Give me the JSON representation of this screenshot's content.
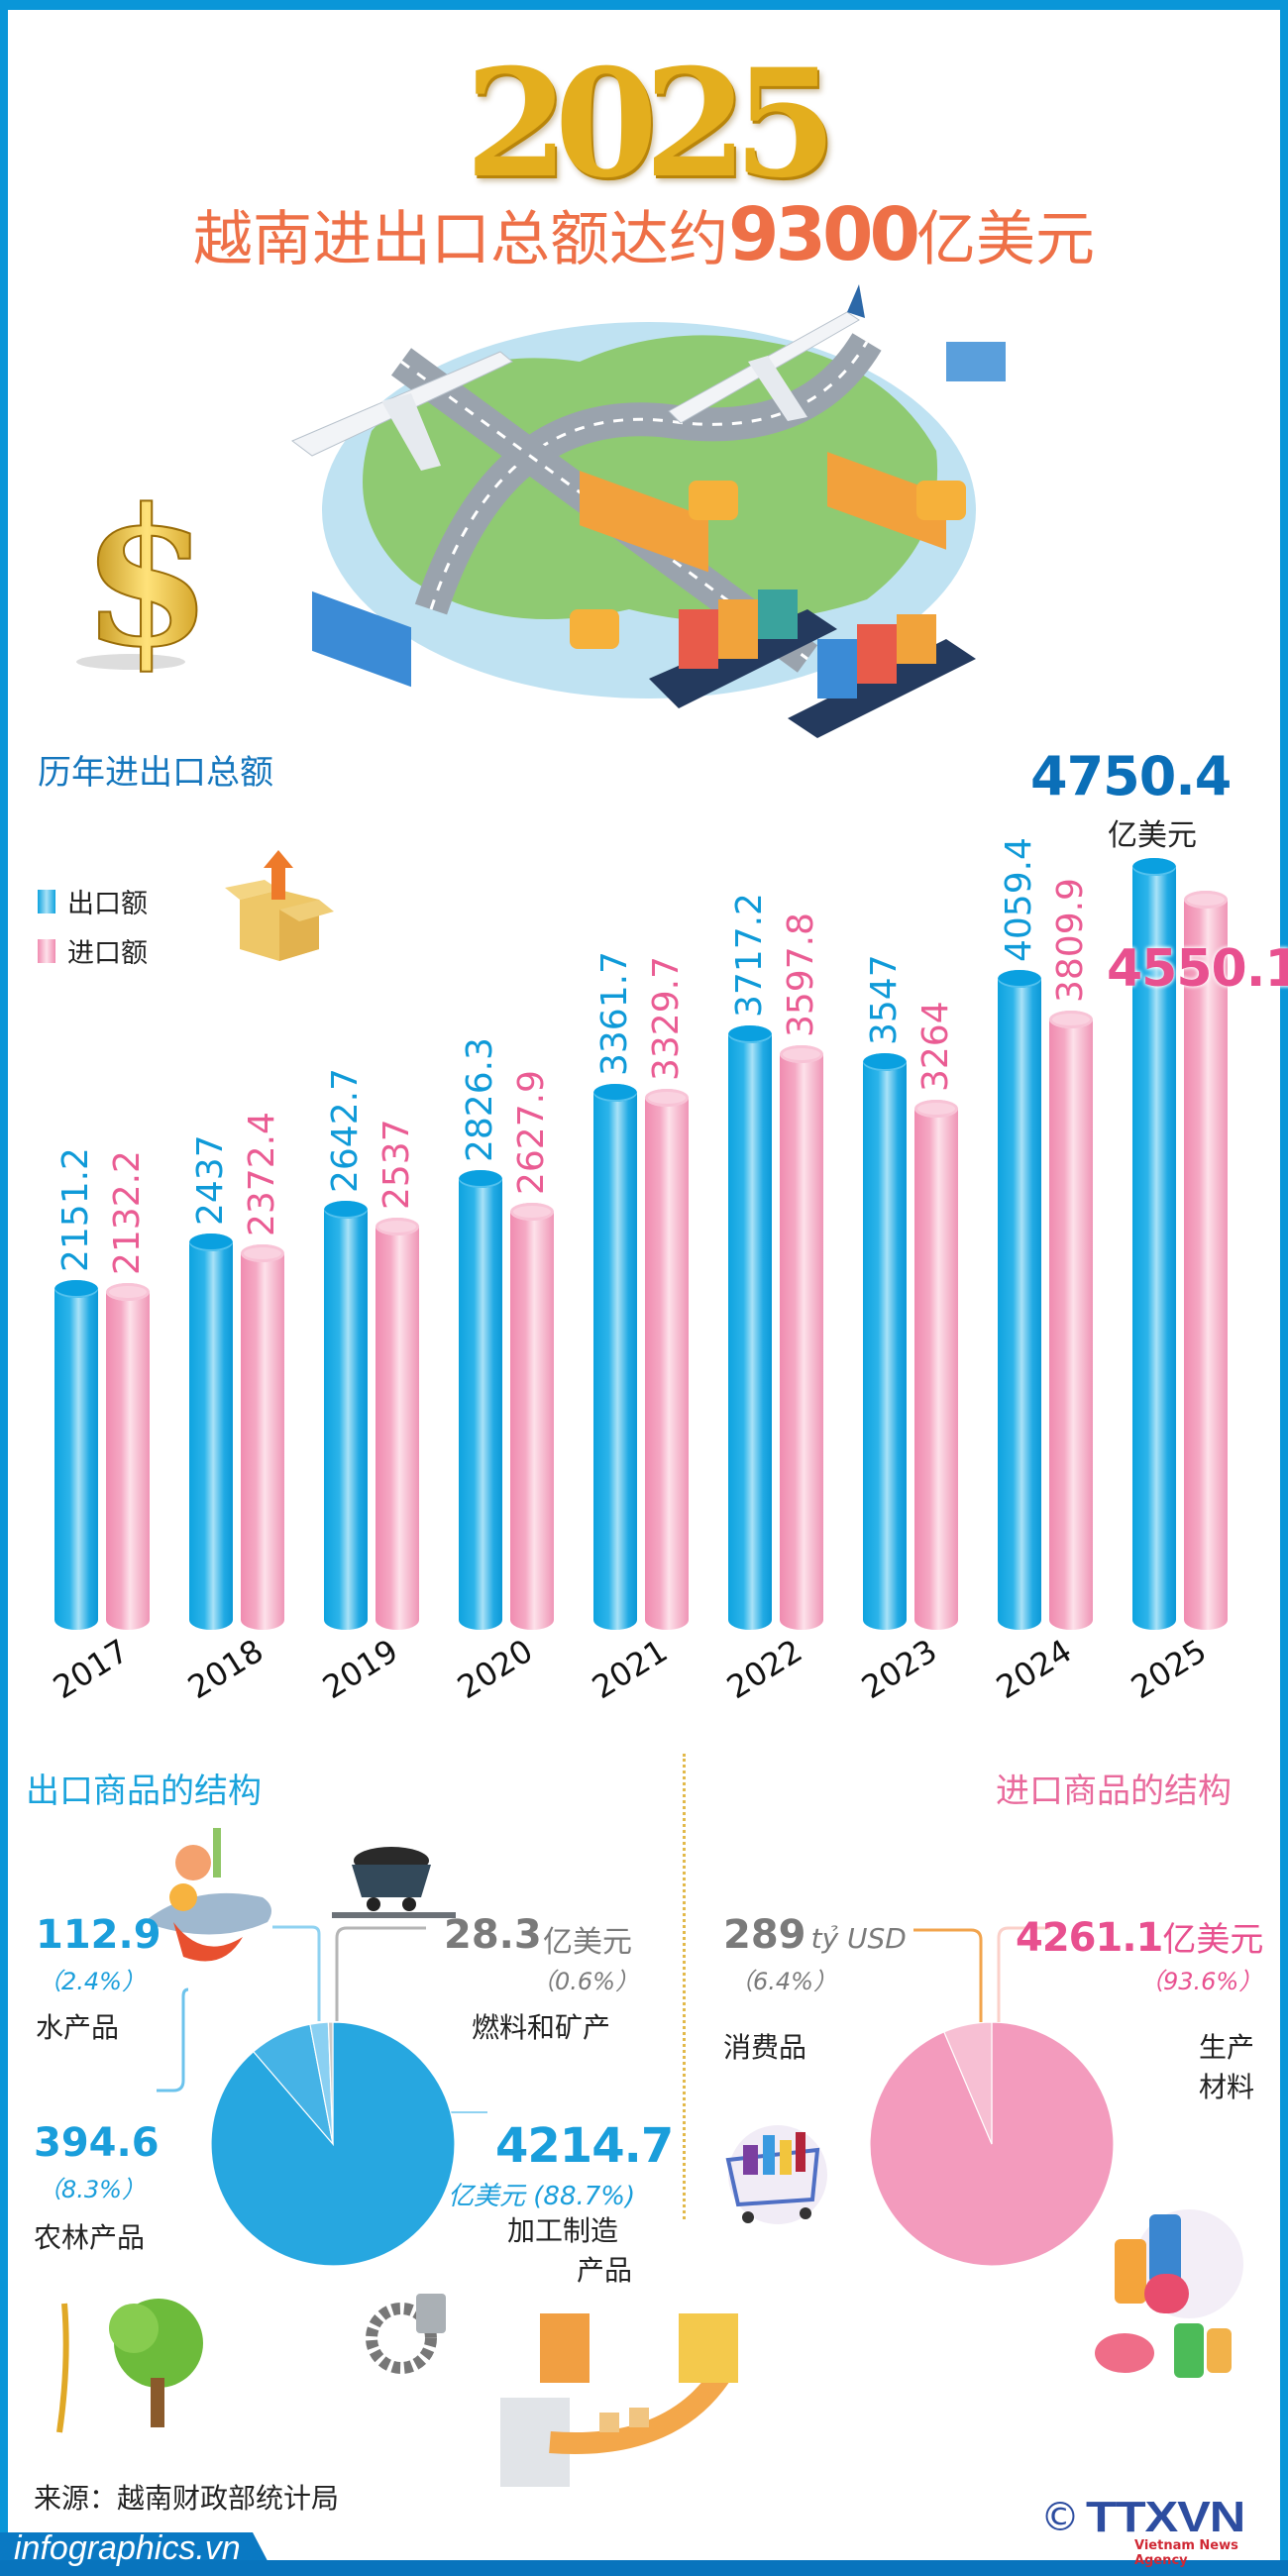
{
  "header": {
    "year": "2025",
    "headline_prefix": "越南进出口总额达约",
    "headline_number": "9300",
    "headline_suffix": "亿美元"
  },
  "bar_section": {
    "title": "历年进出口总额",
    "legend": [
      {
        "label": "出口额",
        "color": "#15a5e2"
      },
      {
        "label": "进口额",
        "color": "#f49ab9"
      }
    ],
    "highlight_export": "4750.4",
    "highlight_export_unit": "亿美元",
    "highlight_import": "4550.1"
  },
  "export_structure": {
    "title": "出口商品的结构",
    "items": [
      {
        "value": "112.9",
        "pct": "（2.4%）",
        "label": "水产品"
      },
      {
        "value": "28.3",
        "unit": "亿美元",
        "pct": "（0.6%）",
        "label": "燃料和矿产"
      },
      {
        "value": "394.6",
        "pct": "（8.3%）",
        "label": "农林产品"
      },
      {
        "value": "4214.7",
        "unit_pct": "亿美元 (88.7%)",
        "label_line1": "加工制造",
        "label_line2": "产品"
      }
    ]
  },
  "import_structure": {
    "title": "进口商品的结构",
    "items": [
      {
        "value": "289",
        "unit": "tỷ USD",
        "pct": "（6.4%）",
        "label": "消费品"
      },
      {
        "value": "4261.1",
        "unit": "亿美元",
        "pct": "（93.6%）",
        "label_line1": "生产",
        "label_line2": "材料"
      }
    ]
  },
  "footer": {
    "source": "来源：越南财政部统计局",
    "site": "infographics.vn",
    "copyright": "©",
    "logo": "TTXVN",
    "logo_sub": "Vietnam News Agency"
  },
  "colors": {
    "frame": "#0a96d8",
    "export": "#15a5e2",
    "import": "#f49ab9",
    "headline": "#ee7047",
    "export_pie": "#27a7e0",
    "import_pie": "#f39bbd"
  },
  "chart_data": [
    {
      "type": "bar",
      "title": "历年进出口总额",
      "categories": [
        "2017",
        "2018",
        "2019",
        "2020",
        "2021",
        "2022",
        "2023",
        "2024",
        "2025"
      ],
      "series": [
        {
          "name": "出口额",
          "values": [
            2151.2,
            2437,
            2642.7,
            2826.3,
            3361.7,
            3717.2,
            3547,
            4059.4,
            4750.4
          ]
        },
        {
          "name": "进口额",
          "values": [
            2132.2,
            2372.4,
            2537,
            2627.9,
            3329.7,
            3597.8,
            3264,
            3809.9,
            4550.1
          ]
        }
      ],
      "labels": {
        "出口额": [
          "2151.2",
          "2437",
          "2642.7",
          "2826.3",
          "3361.7",
          "3717.2",
          "3547",
          "4059.4",
          "4750.4"
        ],
        "进口额": [
          "2132.2",
          "2372.4",
          "2537",
          "2627.9",
          "3329.7",
          "3597.8",
          "3264",
          "3809.9",
          "4550.1"
        ]
      },
      "ylabel": "亿美元",
      "grid": false,
      "legend_position": "top-left"
    },
    {
      "type": "pie",
      "title": "出口商品的结构",
      "unit": "亿美元",
      "slices": [
        {
          "label": "加工制造产品",
          "value": 4214.7,
          "pct": 88.7
        },
        {
          "label": "农林产品",
          "value": 394.6,
          "pct": 8.3
        },
        {
          "label": "水产品",
          "value": 112.9,
          "pct": 2.4
        },
        {
          "label": "燃料和矿产",
          "value": 28.3,
          "pct": 0.6
        }
      ]
    },
    {
      "type": "pie",
      "title": "进口商品的结构",
      "unit": "亿美元",
      "slices": [
        {
          "label": "生产材料",
          "value": 4261.1,
          "pct": 93.6
        },
        {
          "label": "消费品",
          "value": 289,
          "pct": 6.4
        }
      ]
    }
  ]
}
